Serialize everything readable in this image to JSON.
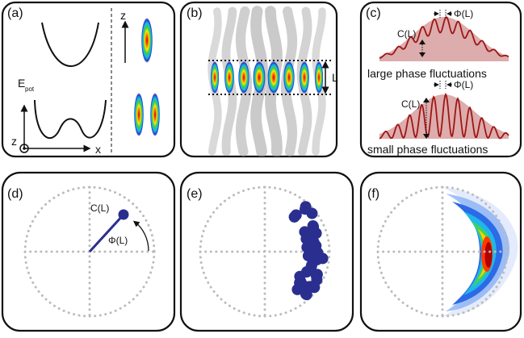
{
  "panels": {
    "a": {
      "label": "(a)",
      "axis_z_top": "z",
      "energy_label": "E",
      "energy_sub": "pot",
      "axis_z": "z",
      "axis_x": "x"
    },
    "b": {
      "label": "(b)",
      "length_label": "L"
    },
    "c": {
      "label": "(c)",
      "coherence_label": "C(L)",
      "phase_label": "Φ(L)",
      "large_text": "large phase fluctuations",
      "small_text": "small phase fluctuations"
    },
    "d": {
      "label": "(d)",
      "coherence_label": "C(L)",
      "phase_label": "Φ(L)"
    },
    "e": {
      "label": "(e)"
    },
    "f": {
      "label": "(f)"
    }
  },
  "colors": {
    "panel_border": "#111111",
    "grid_dots": "#bcbcbc",
    "vector": "#2a2f8f",
    "curve": "#a01515",
    "envelope_fill": "#d9a3a3"
  }
}
